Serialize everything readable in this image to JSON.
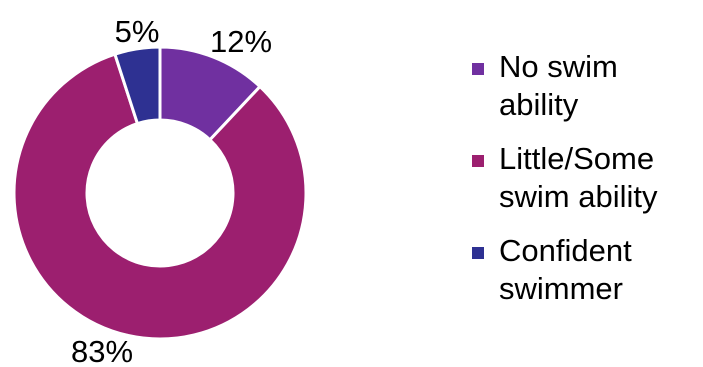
{
  "chart_data": {
    "type": "pie",
    "variant": "donut",
    "categories": [
      "No swim ability",
      "Little/Some swim ability",
      "Confident swimmer"
    ],
    "values": [
      12,
      83,
      5
    ],
    "data_labels": [
      "12%",
      "83%",
      "5%"
    ],
    "colors": [
      "#7030a0",
      "#9c1f6f",
      "#2e3192"
    ],
    "legend_items": [
      {
        "lines": [
          "No swim",
          "ability"
        ]
      },
      {
        "lines": [
          "Little/Some",
          "swim ability"
        ]
      },
      {
        "lines": [
          "Confident",
          "swimmer"
        ]
      }
    ],
    "legend_position": "right",
    "start_angle": "top, clockwise",
    "title": ""
  }
}
